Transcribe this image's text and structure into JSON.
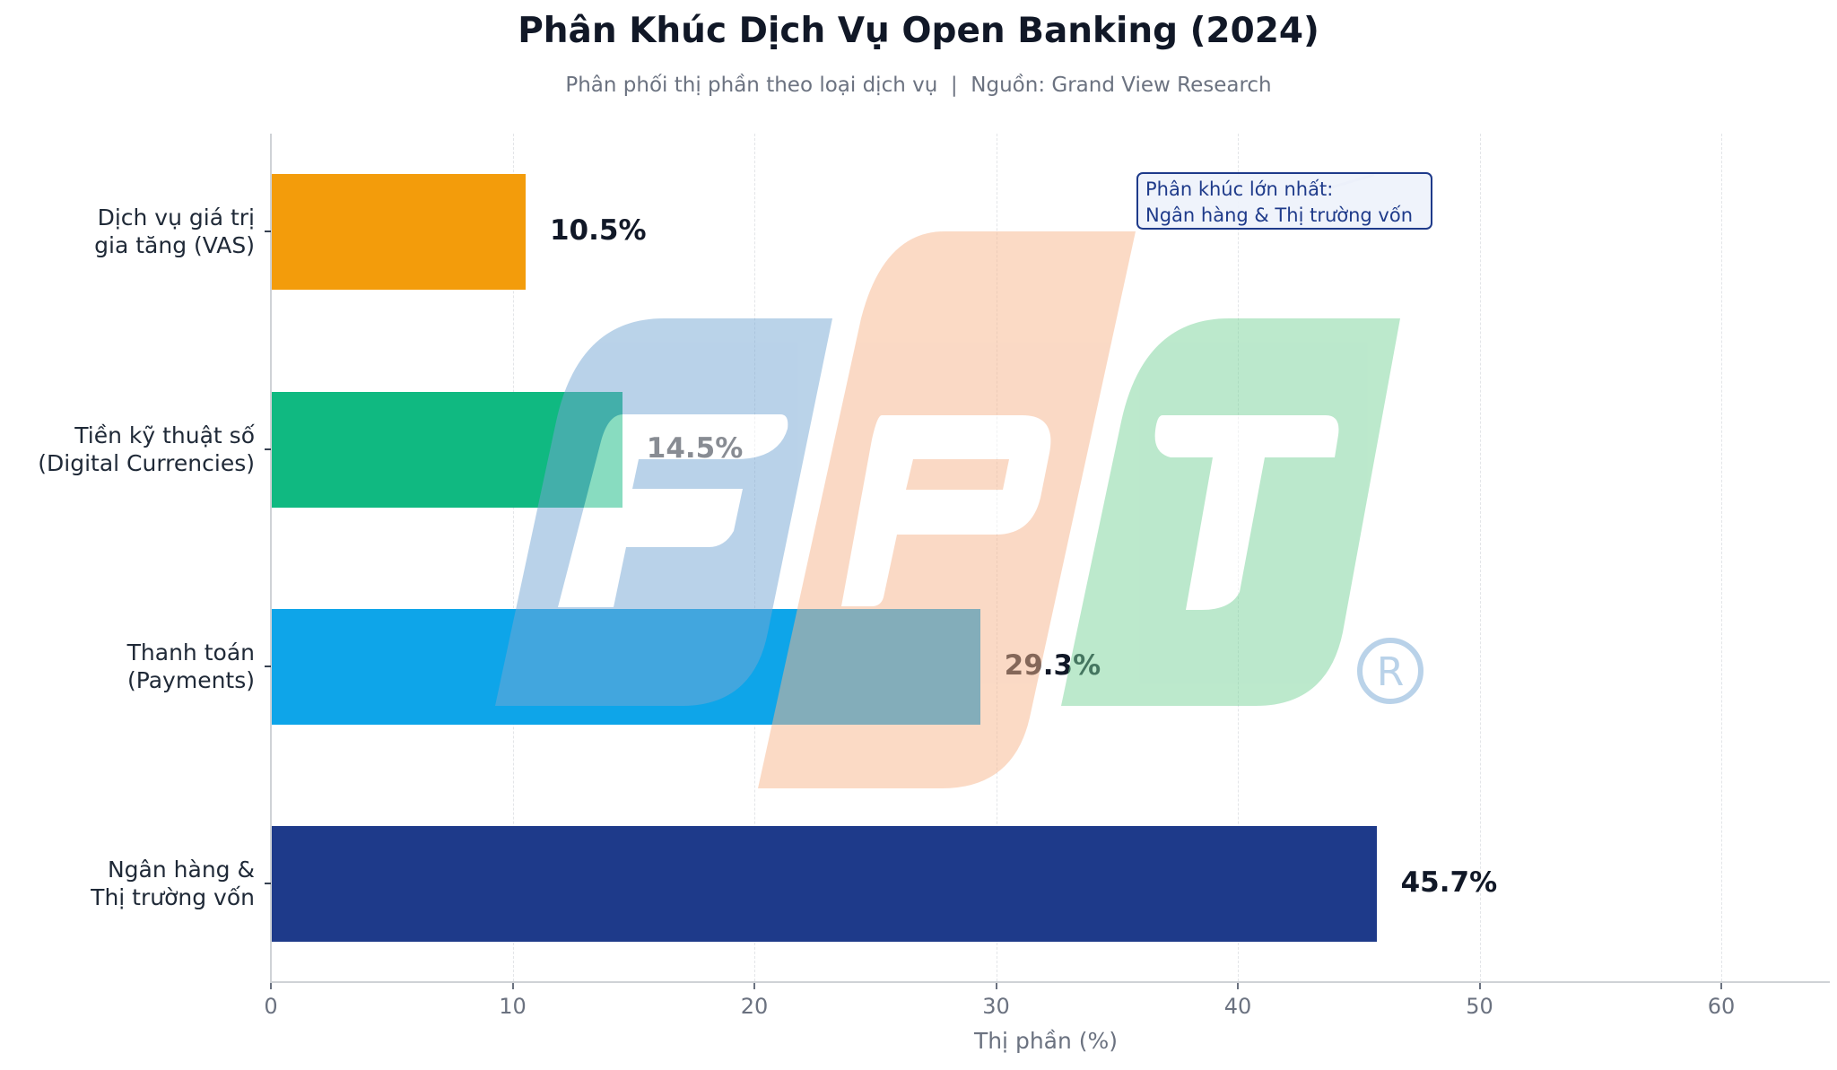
{
  "chart_data": {
    "type": "bar",
    "orientation": "horizontal",
    "title": "Phân Khúc Dịch Vụ Open Banking (2024)",
    "subtitle": "Phân phối thị phần theo loại dịch vụ  |  Nguồn: Grand View Research",
    "xlabel": "Thị phần (%)",
    "ylabel": "",
    "xlim": [
      0,
      64
    ],
    "xticks": [
      0,
      10,
      20,
      30,
      40,
      50,
      60
    ],
    "grid": "vertical dashed",
    "categories": [
      "Dịch vụ giá trị\ngia tăng (VAS)",
      "Tiền kỹ thuật số\n(Digital Currencies)",
      "Thanh toán\n(Payments)",
      "Ngân hàng &\nThị trường vốn"
    ],
    "category_lines": [
      [
        "Dịch vụ giá trị",
        "gia tăng (VAS)"
      ],
      [
        "Tiền kỹ thuật số",
        "(Digital Currencies)"
      ],
      [
        "Thanh toán",
        "(Payments)"
      ],
      [
        "Ngân hàng &",
        "Thị trường vốn"
      ]
    ],
    "values": [
      10.5,
      14.5,
      29.3,
      45.7
    ],
    "value_labels": [
      "10.5%",
      "14.5%",
      "29.3%",
      "45.7%"
    ],
    "colors": [
      "#f39c0b",
      "#10b981",
      "#0ea5e9",
      "#1e3a8a"
    ],
    "annotation": {
      "line1": "Phân khúc lớn nhất:",
      "line2": "Ngân hàng & Thị trường vốn"
    }
  },
  "watermark": {
    "label": "FPT",
    "tile_colors": [
      "#76a7d4",
      "#f7b58c",
      "#79d39a"
    ],
    "registered_mark": "®"
  }
}
